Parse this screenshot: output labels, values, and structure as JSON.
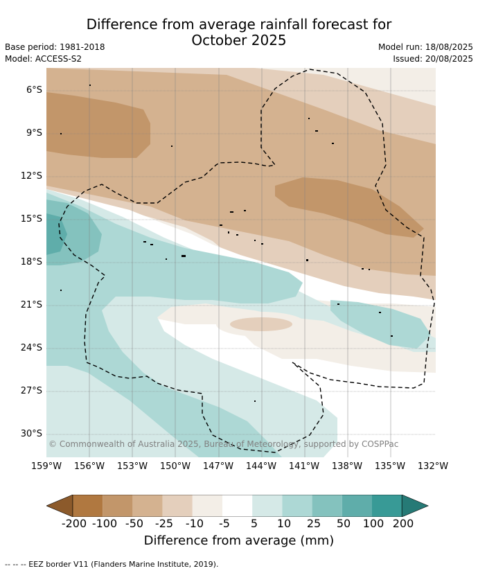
{
  "title": {
    "line1": "Difference from average rainfall forecast for",
    "line2": "October 2025"
  },
  "meta": {
    "base_period": "Base period: 1981-2018",
    "model": "Model: ACCESS-S2",
    "model_run": "Model run: 18/08/2025",
    "issued": "Issued: 20/08/2025"
  },
  "map": {
    "lat_labels": [
      "6°S",
      "9°S",
      "12°S",
      "15°S",
      "18°S",
      "21°S",
      "24°S",
      "27°S",
      "30°S"
    ],
    "lon_labels": [
      "159°W",
      "156°W",
      "153°W",
      "150°W",
      "147°W",
      "144°W",
      "141°W",
      "138°W",
      "135°W",
      "132°W"
    ],
    "copyright": "© Commonwealth of Australia 2025, Bureau of Meteorology, supported by COSPPac"
  },
  "colorbar": {
    "ticks": [
      "-200",
      "-100",
      "-50",
      "-25",
      "-10",
      "-5",
      "5",
      "10",
      "25",
      "50",
      "100",
      "200"
    ],
    "colors": [
      "#8c5a2b",
      "#b07840",
      "#c2966a",
      "#d4b290",
      "#e4cfbc",
      "#f3eee7",
      "#ffffff",
      "#d5e9e7",
      "#add8d5",
      "#84c2be",
      "#5fadaa",
      "#389a96",
      "#267a76"
    ],
    "title": "Difference from average (mm)"
  },
  "legend_note": "--  --  -- EEZ border V11 (Flanders Marine Institute, 2019)."
}
